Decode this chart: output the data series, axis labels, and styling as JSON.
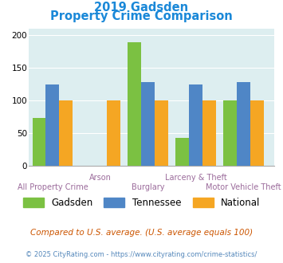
{
  "title_line1": "2019 Gadsden",
  "title_line2": "Property Crime Comparison",
  "categories": [
    "All Property Crime",
    "Arson",
    "Burglary",
    "Larceny & Theft",
    "Motor Vehicle Theft"
  ],
  "series": {
    "Gadsden": [
      73,
      0,
      190,
      43,
      100
    ],
    "Tennessee": [
      125,
      0,
      128,
      125,
      128
    ],
    "National": [
      100,
      100,
      100,
      100,
      100
    ]
  },
  "colors": {
    "Gadsden": "#7bc142",
    "Tennessee": "#4f86c6",
    "National": "#f5a623"
  },
  "ylim": [
    0,
    210
  ],
  "yticks": [
    0,
    50,
    100,
    150,
    200
  ],
  "bg_color": "#ddeef0",
  "title_color": "#1a88d8",
  "xlabel_color": "#9b6b9b",
  "footer_note": "Compared to U.S. average. (U.S. average equals 100)",
  "footer_credit": "© 2025 CityRating.com - https://www.cityrating.com/crime-statistics/",
  "footer_note_color": "#cc5500",
  "footer_credit_color": "#5588bb"
}
